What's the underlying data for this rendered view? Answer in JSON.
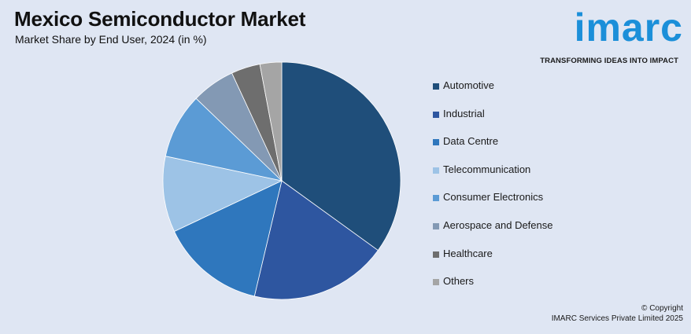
{
  "header": {
    "title": "Mexico Semiconductor Market",
    "subtitle": "Market Share by End User, 2024 (in %)"
  },
  "brand": {
    "logo_text": "imarc",
    "tagline": "TRANSFORMING IDEAS INTO IMPACT",
    "color": "#1b8fd9"
  },
  "chart_data": {
    "type": "pie",
    "start_angle_deg": 0,
    "direction": "clockwise",
    "legend_position": "right",
    "categories": [
      "Automotive",
      "Industrial",
      "Data Centre",
      "Telecommunication",
      "Consumer Electronics",
      "Aerospace and Defense",
      "Healthcare",
      "Others"
    ],
    "values": [
      35.5,
      19,
      14.5,
      10.5,
      9,
      6,
      4,
      3
    ],
    "colors": [
      "#1f4e7a",
      "#2e56a0",
      "#2f77bd",
      "#9dc3e6",
      "#5b9bd5",
      "#8399b4",
      "#6e6e6e",
      "#a5a5a5"
    ]
  },
  "footer": {
    "line1": "© Copyright",
    "line2": "IMARC Services Private Limited 2025"
  }
}
